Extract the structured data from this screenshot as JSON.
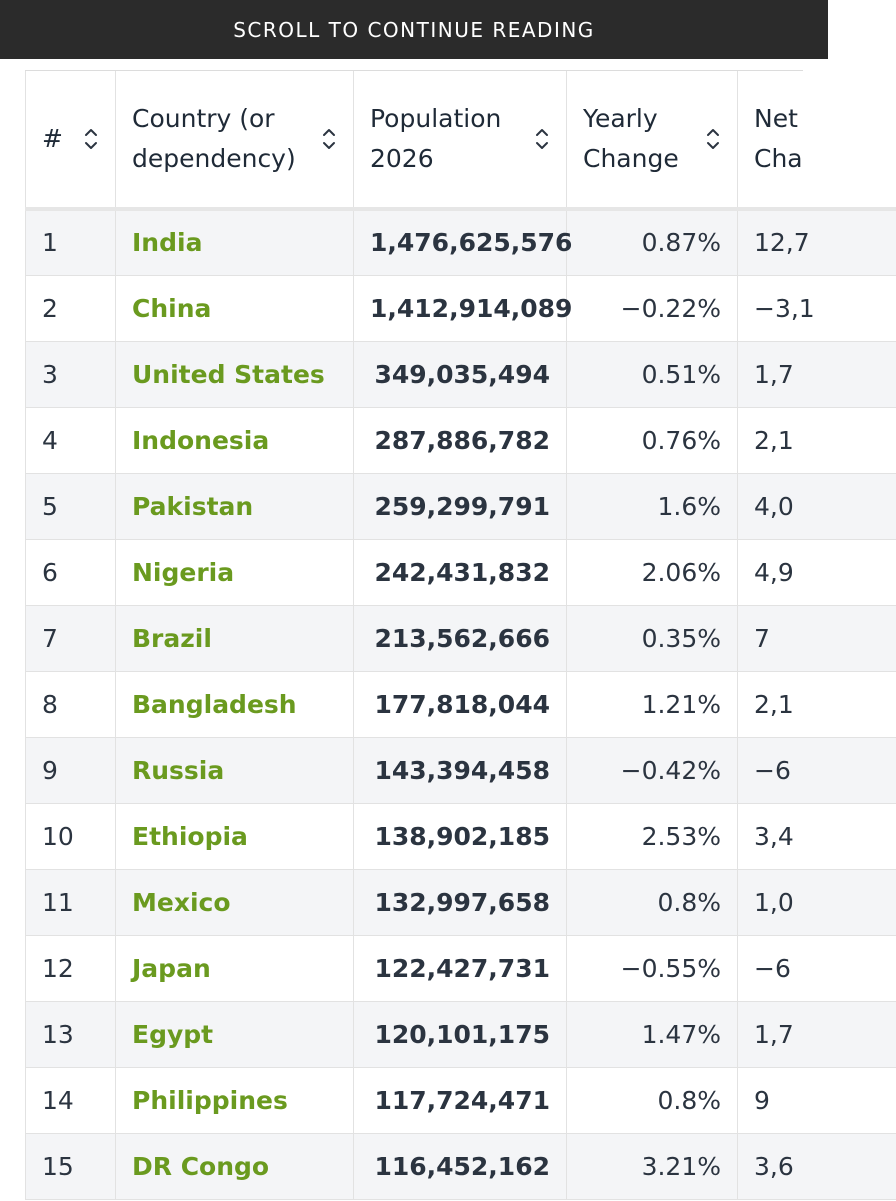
{
  "banner": {
    "text": "SCROLL TO CONTINUE READING"
  },
  "table": {
    "headers": {
      "rank": "#",
      "country_line1": "Country (or",
      "country_line2": "dependency)",
      "population_line1": "Population",
      "population_line2": "2026",
      "yearly_line1": "Yearly",
      "yearly_line2": "Change",
      "net_line1": "Net",
      "net_line2": "Cha"
    },
    "rows": [
      {
        "rank": "1",
        "country": "India",
        "population": "1,476,625,576",
        "yearly_change": "0.87%",
        "net_change": "12,7"
      },
      {
        "rank": "2",
        "country": "China",
        "population": "1,412,914,089",
        "yearly_change": "−0.22%",
        "net_change": "−3,1"
      },
      {
        "rank": "3",
        "country": "United States",
        "population": "349,035,494",
        "yearly_change": "0.51%",
        "net_change": "1,7"
      },
      {
        "rank": "4",
        "country": "Indonesia",
        "population": "287,886,782",
        "yearly_change": "0.76%",
        "net_change": "2,1"
      },
      {
        "rank": "5",
        "country": "Pakistan",
        "population": "259,299,791",
        "yearly_change": "1.6%",
        "net_change": "4,0"
      },
      {
        "rank": "6",
        "country": "Nigeria",
        "population": "242,431,832",
        "yearly_change": "2.06%",
        "net_change": "4,9"
      },
      {
        "rank": "7",
        "country": "Brazil",
        "population": "213,562,666",
        "yearly_change": "0.35%",
        "net_change": "7"
      },
      {
        "rank": "8",
        "country": "Bangladesh",
        "population": "177,818,044",
        "yearly_change": "1.21%",
        "net_change": "2,1"
      },
      {
        "rank": "9",
        "country": "Russia",
        "population": "143,394,458",
        "yearly_change": "−0.42%",
        "net_change": "−6"
      },
      {
        "rank": "10",
        "country": "Ethiopia",
        "population": "138,902,185",
        "yearly_change": "2.53%",
        "net_change": "3,4"
      },
      {
        "rank": "11",
        "country": "Mexico",
        "population": "132,997,658",
        "yearly_change": "0.8%",
        "net_change": "1,0"
      },
      {
        "rank": "12",
        "country": "Japan",
        "population": "122,427,731",
        "yearly_change": "−0.55%",
        "net_change": "−6"
      },
      {
        "rank": "13",
        "country": "Egypt",
        "population": "120,101,175",
        "yearly_change": "1.47%",
        "net_change": "1,7"
      },
      {
        "rank": "14",
        "country": "Philippines",
        "population": "117,724,471",
        "yearly_change": "0.8%",
        "net_change": "9"
      },
      {
        "rank": "15",
        "country": "DR Congo",
        "population": "116,452,162",
        "yearly_change": "3.21%",
        "net_change": "3,6"
      }
    ]
  },
  "colors": {
    "banner_bg": "#2b2b2b",
    "link_green": "#6a9a1f",
    "stripe": "#f4f5f7"
  },
  "icons": {
    "sort": "sort-arrows-icon"
  }
}
